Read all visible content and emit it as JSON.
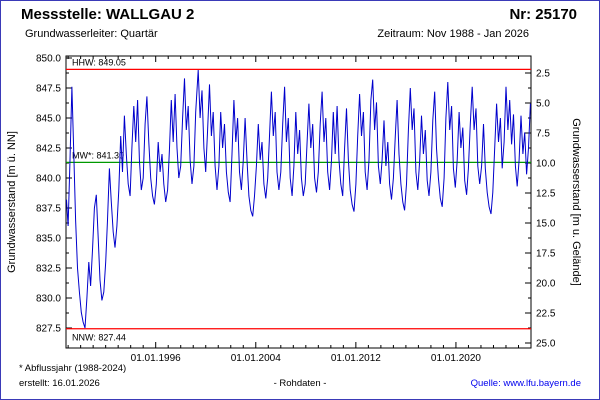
{
  "header": {
    "station_label": "Messstelle: WALLGAU 2",
    "number_label": "Nr: 25170",
    "aquifer": "Grundwasserleiter: Quartär",
    "period": "Zeitraum: Nov 1988 - Jan 2026"
  },
  "footer": {
    "note": "* Abflussjahr (1988-2024)",
    "created": "erstellt: 16.01.2026",
    "center": "- Rohdaten -",
    "source": "Quelle: www.lfu.bayern.de"
  },
  "colors": {
    "series": "#0000cc",
    "extreme_line": "#ff0000",
    "mean_line": "#009900",
    "frame": "#000000",
    "link": "#0000ee",
    "page_border": "#3a3ab8"
  },
  "chart_data": {
    "type": "line",
    "title": "",
    "grid": false,
    "legend_position": "none",
    "x_range": [
      1988.83,
      2026.0
    ],
    "x_ticks": [
      {
        "value": 1996,
        "label": "01.01.1996"
      },
      {
        "value": 2004,
        "label": "01.01.2004"
      },
      {
        "value": 2012,
        "label": "01.01.2012"
      },
      {
        "value": 2020,
        "label": "01.01.2020"
      }
    ],
    "y_left": {
      "title": "Grundwasserstand [m ü. NN]",
      "range": [
        825.8,
        850.2
      ],
      "ticks": [
        {
          "value": 850.0,
          "label": "850.0"
        },
        {
          "value": 847.5,
          "label": "847.5"
        },
        {
          "value": 845.0,
          "label": "845.0"
        },
        {
          "value": 842.5,
          "label": "842.5"
        },
        {
          "value": 840.0,
          "label": "840.0"
        },
        {
          "value": 837.5,
          "label": "837.5"
        },
        {
          "value": 835.0,
          "label": "835.0"
        },
        {
          "value": 832.5,
          "label": "832.5"
        },
        {
          "value": 830.0,
          "label": "830.0"
        },
        {
          "value": 827.5,
          "label": "827.5"
        }
      ]
    },
    "y_right": {
      "title": "Grundwasserstand [m u. Gelände]",
      "ticks": [
        {
          "value": 2.5,
          "label": "2.5"
        },
        {
          "value": 5.0,
          "label": "5.0"
        },
        {
          "value": 7.5,
          "label": "7.5"
        },
        {
          "value": 10.0,
          "label": "10.0"
        },
        {
          "value": 12.5,
          "label": "12.5"
        },
        {
          "value": 15.0,
          "label": "15.0"
        },
        {
          "value": 17.5,
          "label": "17.5"
        },
        {
          "value": 20.0,
          "label": "20.0"
        },
        {
          "value": 22.5,
          "label": "22.5"
        },
        {
          "value": 25.0,
          "label": "25.0"
        }
      ]
    },
    "reference_lines": [
      {
        "name": "HHW",
        "label": "HHW: 849.05",
        "value": 849.05,
        "color": "#ff0000",
        "label_position": "above"
      },
      {
        "name": "MW",
        "label": "MW*: 841.30",
        "value": 841.3,
        "color": "#009900",
        "label_position": "above"
      },
      {
        "name": "NNW",
        "label": "NNW: 827.44",
        "value": 827.44,
        "color": "#ff0000",
        "label_position": "below"
      }
    ],
    "series": [
      {
        "name": "Rohdaten",
        "color": "#0000cc",
        "points": [
          [
            1988.87,
            838.2
          ],
          [
            1989.0,
            836.0
          ],
          [
            1989.15,
            841.5
          ],
          [
            1989.3,
            847.6
          ],
          [
            1989.45,
            842.0
          ],
          [
            1989.6,
            836.5
          ],
          [
            1989.75,
            832.5
          ],
          [
            1989.9,
            830.5
          ],
          [
            1990.05,
            828.8
          ],
          [
            1990.2,
            828.0
          ],
          [
            1990.35,
            827.5
          ],
          [
            1990.5,
            830.0
          ],
          [
            1990.65,
            833.0
          ],
          [
            1990.8,
            831.0
          ],
          [
            1990.95,
            834.0
          ],
          [
            1991.1,
            837.5
          ],
          [
            1991.25,
            838.6
          ],
          [
            1991.4,
            835.0
          ],
          [
            1991.55,
            831.5
          ],
          [
            1991.7,
            829.8
          ],
          [
            1991.85,
            830.5
          ],
          [
            1992.0,
            833.0
          ],
          [
            1992.15,
            836.5
          ],
          [
            1992.3,
            840.8
          ],
          [
            1992.45,
            838.0
          ],
          [
            1992.6,
            835.5
          ],
          [
            1992.75,
            834.2
          ],
          [
            1992.9,
            836.0
          ],
          [
            1993.05,
            839.0
          ],
          [
            1993.2,
            843.5
          ],
          [
            1993.35,
            840.5
          ],
          [
            1993.5,
            845.2
          ],
          [
            1993.65,
            842.0
          ],
          [
            1993.8,
            839.5
          ],
          [
            1993.95,
            838.5
          ],
          [
            1994.1,
            842.5
          ],
          [
            1994.25,
            846.0
          ],
          [
            1994.4,
            843.0
          ],
          [
            1994.55,
            846.5
          ],
          [
            1994.7,
            841.5
          ],
          [
            1994.85,
            839.0
          ],
          [
            1995.0,
            840.0
          ],
          [
            1995.15,
            844.5
          ],
          [
            1995.3,
            846.8
          ],
          [
            1995.45,
            843.0
          ],
          [
            1995.6,
            840.0
          ],
          [
            1995.75,
            838.5
          ],
          [
            1995.9,
            837.8
          ],
          [
            1996.05,
            839.5
          ],
          [
            1996.2,
            843.0
          ],
          [
            1996.35,
            840.5
          ],
          [
            1996.5,
            842.0
          ],
          [
            1996.65,
            839.5
          ],
          [
            1996.8,
            838.0
          ],
          [
            1996.95,
            839.0
          ],
          [
            1997.1,
            842.5
          ],
          [
            1997.25,
            846.5
          ],
          [
            1997.4,
            843.0
          ],
          [
            1997.55,
            847.0
          ],
          [
            1997.7,
            842.5
          ],
          [
            1997.85,
            840.0
          ],
          [
            1998.0,
            841.0
          ],
          [
            1998.15,
            845.0
          ],
          [
            1998.3,
            848.3
          ],
          [
            1998.45,
            844.0
          ],
          [
            1998.6,
            846.0
          ],
          [
            1998.75,
            841.5
          ],
          [
            1998.9,
            839.5
          ],
          [
            1999.05,
            841.0
          ],
          [
            1999.2,
            845.5
          ],
          [
            1999.4,
            849.0
          ],
          [
            1999.55,
            845.0
          ],
          [
            1999.7,
            847.3
          ],
          [
            1999.85,
            842.5
          ],
          [
            2000.0,
            840.5
          ],
          [
            2000.15,
            844.0
          ],
          [
            2000.3,
            847.8
          ],
          [
            2000.45,
            843.5
          ],
          [
            2000.6,
            845.5
          ],
          [
            2000.75,
            841.0
          ],
          [
            2000.9,
            839.0
          ],
          [
            2001.05,
            841.0
          ],
          [
            2001.2,
            845.5
          ],
          [
            2001.35,
            842.5
          ],
          [
            2001.5,
            844.5
          ],
          [
            2001.65,
            840.5
          ],
          [
            2001.8,
            838.8
          ],
          [
            2001.95,
            838.0
          ],
          [
            2002.1,
            842.0
          ],
          [
            2002.25,
            846.5
          ],
          [
            2002.4,
            843.0
          ],
          [
            2002.55,
            845.0
          ],
          [
            2002.7,
            840.5
          ],
          [
            2002.85,
            839.0
          ],
          [
            2003.0,
            841.5
          ],
          [
            2003.15,
            845.0
          ],
          [
            2003.3,
            841.5
          ],
          [
            2003.45,
            838.5
          ],
          [
            2003.6,
            837.3
          ],
          [
            2003.75,
            836.8
          ],
          [
            2003.9,
            838.5
          ],
          [
            2004.05,
            841.0
          ],
          [
            2004.2,
            844.5
          ],
          [
            2004.35,
            841.5
          ],
          [
            2004.5,
            843.0
          ],
          [
            2004.65,
            839.5
          ],
          [
            2004.8,
            838.3
          ],
          [
            2004.95,
            840.0
          ],
          [
            2005.1,
            843.5
          ],
          [
            2005.25,
            847.2
          ],
          [
            2005.4,
            843.5
          ],
          [
            2005.55,
            845.5
          ],
          [
            2005.7,
            840.5
          ],
          [
            2005.85,
            839.0
          ],
          [
            2006.0,
            840.5
          ],
          [
            2006.15,
            844.5
          ],
          [
            2006.3,
            847.6
          ],
          [
            2006.45,
            843.0
          ],
          [
            2006.6,
            845.0
          ],
          [
            2006.75,
            840.0
          ],
          [
            2006.9,
            838.5
          ],
          [
            2007.05,
            841.0
          ],
          [
            2007.2,
            845.5
          ],
          [
            2007.35,
            842.0
          ],
          [
            2007.5,
            844.0
          ],
          [
            2007.65,
            840.0
          ],
          [
            2007.8,
            838.5
          ],
          [
            2007.95,
            839.5
          ],
          [
            2008.1,
            843.0
          ],
          [
            2008.25,
            846.2
          ],
          [
            2008.4,
            842.5
          ],
          [
            2008.55,
            844.5
          ],
          [
            2008.7,
            840.0
          ],
          [
            2008.85,
            838.8
          ],
          [
            2009.0,
            840.5
          ],
          [
            2009.15,
            844.5
          ],
          [
            2009.3,
            847.2
          ],
          [
            2009.45,
            843.0
          ],
          [
            2009.6,
            845.0
          ],
          [
            2009.75,
            840.5
          ],
          [
            2009.9,
            839.0
          ],
          [
            2010.05,
            841.5
          ],
          [
            2010.2,
            845.5
          ],
          [
            2010.35,
            842.0
          ],
          [
            2010.5,
            846.0
          ],
          [
            2010.65,
            841.5
          ],
          [
            2010.8,
            839.5
          ],
          [
            2010.95,
            838.5
          ],
          [
            2011.1,
            842.5
          ],
          [
            2011.25,
            845.8
          ],
          [
            2011.4,
            841.5
          ],
          [
            2011.55,
            839.0
          ],
          [
            2011.7,
            837.8
          ],
          [
            2011.85,
            837.2
          ],
          [
            2012.0,
            839.5
          ],
          [
            2012.15,
            843.5
          ],
          [
            2012.3,
            847.0
          ],
          [
            2012.45,
            843.5
          ],
          [
            2012.6,
            845.5
          ],
          [
            2012.75,
            840.5
          ],
          [
            2012.9,
            839.0
          ],
          [
            2013.05,
            841.5
          ],
          [
            2013.2,
            846.5
          ],
          [
            2013.35,
            848.2
          ],
          [
            2013.5,
            844.0
          ],
          [
            2013.65,
            846.3
          ],
          [
            2013.8,
            841.0
          ],
          [
            2013.95,
            839.5
          ],
          [
            2014.1,
            841.5
          ],
          [
            2014.25,
            844.8
          ],
          [
            2014.4,
            841.0
          ],
          [
            2014.55,
            843.0
          ],
          [
            2014.7,
            839.5
          ],
          [
            2014.85,
            838.2
          ],
          [
            2015.0,
            840.0
          ],
          [
            2015.15,
            843.5
          ],
          [
            2015.3,
            846.5
          ],
          [
            2015.45,
            842.0
          ],
          [
            2015.6,
            839.5
          ],
          [
            2015.75,
            838.0
          ],
          [
            2015.9,
            837.3
          ],
          [
            2016.05,
            839.5
          ],
          [
            2016.2,
            844.0
          ],
          [
            2016.35,
            847.5
          ],
          [
            2016.5,
            844.0
          ],
          [
            2016.65,
            845.8
          ],
          [
            2016.8,
            840.5
          ],
          [
            2016.95,
            839.0
          ],
          [
            2017.1,
            841.5
          ],
          [
            2017.25,
            845.2
          ],
          [
            2017.4,
            842.0
          ],
          [
            2017.55,
            844.0
          ],
          [
            2017.7,
            839.8
          ],
          [
            2017.85,
            838.5
          ],
          [
            2018.0,
            840.5
          ],
          [
            2018.15,
            844.8
          ],
          [
            2018.3,
            847.2
          ],
          [
            2018.45,
            842.5
          ],
          [
            2018.6,
            840.0
          ],
          [
            2018.75,
            838.3
          ],
          [
            2018.9,
            837.6
          ],
          [
            2019.05,
            840.0
          ],
          [
            2019.2,
            845.0
          ],
          [
            2019.35,
            848.0
          ],
          [
            2019.5,
            844.0
          ],
          [
            2019.65,
            846.0
          ],
          [
            2019.8,
            840.8
          ],
          [
            2019.95,
            839.2
          ],
          [
            2020.1,
            841.5
          ],
          [
            2020.25,
            845.5
          ],
          [
            2020.4,
            842.5
          ],
          [
            2020.55,
            844.2
          ],
          [
            2020.7,
            839.8
          ],
          [
            2020.85,
            838.6
          ],
          [
            2021.0,
            840.8
          ],
          [
            2021.15,
            844.5
          ],
          [
            2021.3,
            847.6
          ],
          [
            2021.45,
            844.0
          ],
          [
            2021.6,
            845.8
          ],
          [
            2021.75,
            841.0
          ],
          [
            2021.9,
            839.5
          ],
          [
            2022.05,
            841.0
          ],
          [
            2022.2,
            844.5
          ],
          [
            2022.35,
            840.8
          ],
          [
            2022.5,
            838.8
          ],
          [
            2022.65,
            837.6
          ],
          [
            2022.8,
            837.0
          ],
          [
            2022.95,
            838.8
          ],
          [
            2023.1,
            842.5
          ],
          [
            2023.25,
            846.2
          ],
          [
            2023.4,
            843.0
          ],
          [
            2023.55,
            845.0
          ],
          [
            2023.7,
            840.8
          ],
          [
            2023.85,
            843.0
          ],
          [
            2024.0,
            847.6
          ],
          [
            2024.15,
            844.0
          ],
          [
            2024.3,
            846.5
          ],
          [
            2024.45,
            842.8
          ],
          [
            2024.6,
            845.3
          ],
          [
            2024.75,
            841.0
          ],
          [
            2024.9,
            839.3
          ],
          [
            2025.05,
            841.5
          ],
          [
            2025.2,
            845.2
          ],
          [
            2025.35,
            842.0
          ],
          [
            2025.5,
            843.8
          ],
          [
            2025.65,
            840.3
          ],
          [
            2025.8,
            842.5
          ],
          [
            2025.95,
            846.2
          ]
        ]
      }
    ]
  }
}
